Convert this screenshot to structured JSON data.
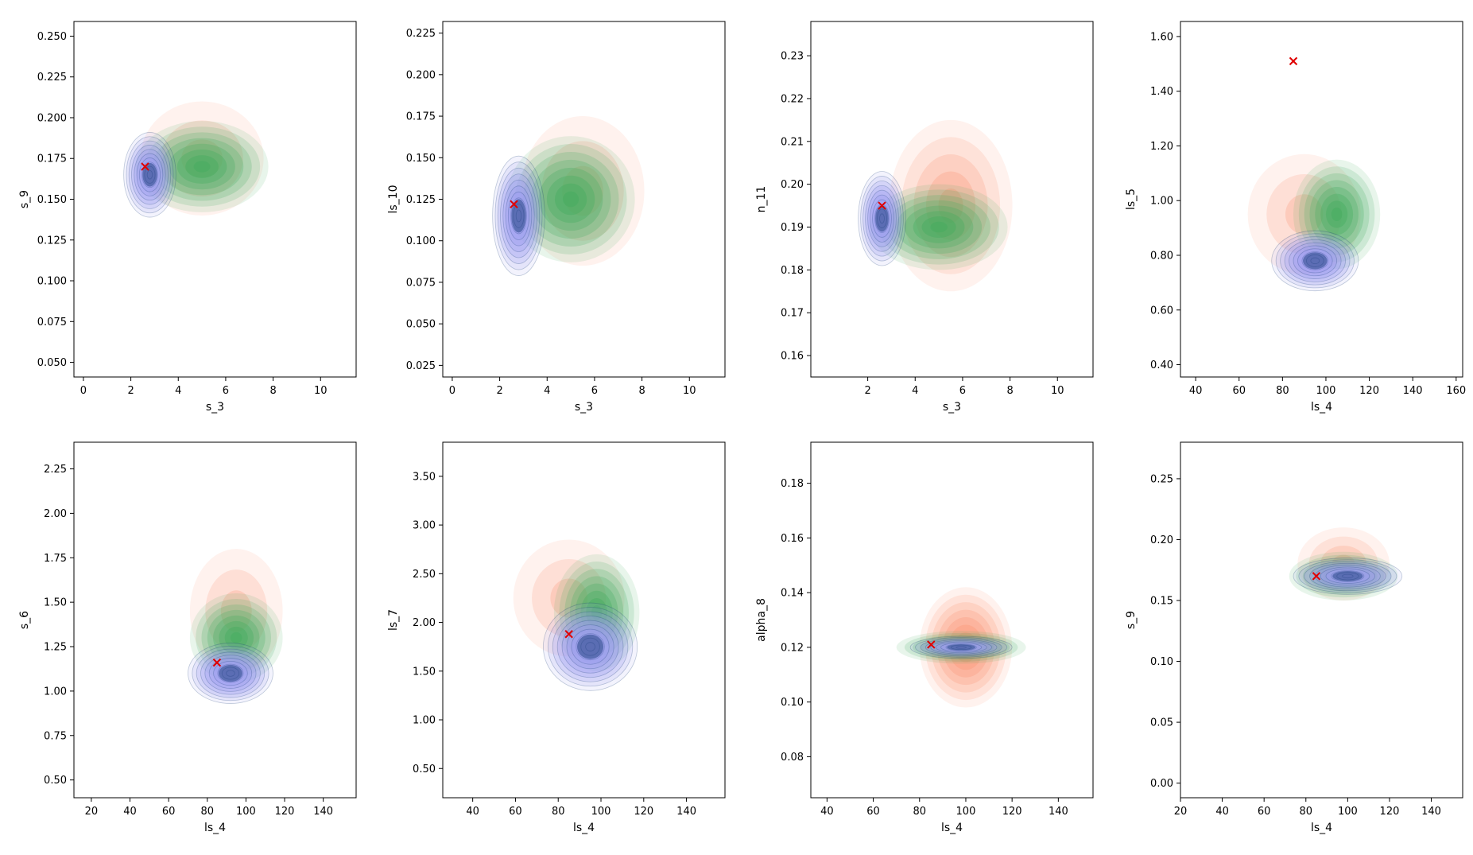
{
  "colors": {
    "series_a": "#fc9272",
    "series_b": "#41ab5d",
    "series_c": "#9e9ef0",
    "series_c_dark": "#08306b",
    "marker": "#e00000"
  },
  "chart_data": [
    {
      "type": "kde-contour",
      "xlabel": "s_3",
      "ylabel": "s_9",
      "xlim": [
        -0.4,
        11.5
      ],
      "ylim": [
        0.041,
        0.259
      ],
      "xticks": [
        0,
        2,
        4,
        6,
        8,
        10
      ],
      "yticks": [
        0.05,
        0.075,
        0.1,
        0.125,
        0.15,
        0.175,
        0.2,
        0.225,
        0.25
      ],
      "marker": {
        "x": 2.6,
        "y": 0.17
      },
      "series": [
        {
          "color": "series_a",
          "center": [
            5.0,
            0.175
          ],
          "spread": [
            2.6,
            0.035
          ],
          "levels": 3,
          "peak_alpha": 0.35
        },
        {
          "color": "series_b",
          "center": [
            5.0,
            0.17
          ],
          "spread": [
            2.8,
            0.028
          ],
          "levels": 8,
          "peak_alpha": 0.6
        },
        {
          "color": "series_c",
          "center": [
            2.8,
            0.165
          ],
          "spread": [
            1.1,
            0.026
          ],
          "levels": 10,
          "peak_alpha": 0.9
        }
      ]
    },
    {
      "type": "kde-contour",
      "xlabel": "s_3",
      "ylabel": "ls_10",
      "xlim": [
        -0.4,
        11.5
      ],
      "ylim": [
        0.018,
        0.232
      ],
      "xticks": [
        0,
        2,
        4,
        6,
        8,
        10
      ],
      "yticks": [
        0.025,
        0.05,
        0.075,
        0.1,
        0.125,
        0.15,
        0.175,
        0.2,
        0.225
      ],
      "marker": {
        "x": 2.6,
        "y": 0.122
      },
      "series": [
        {
          "color": "series_a",
          "center": [
            5.5,
            0.13
          ],
          "spread": [
            2.6,
            0.045
          ],
          "levels": 3,
          "peak_alpha": 0.35
        },
        {
          "color": "series_b",
          "center": [
            5.0,
            0.125
          ],
          "spread": [
            2.7,
            0.038
          ],
          "levels": 8,
          "peak_alpha": 0.6
        },
        {
          "color": "series_c",
          "center": [
            2.8,
            0.115
          ],
          "spread": [
            1.1,
            0.036
          ],
          "levels": 10,
          "peak_alpha": 0.9
        }
      ]
    },
    {
      "type": "kde-contour",
      "xlabel": "s_3",
      "ylabel": "n_11",
      "xlim": [
        -0.4,
        11.5
      ],
      "ylim": [
        0.155,
        0.238
      ],
      "xticks": [
        2,
        4,
        6,
        8,
        10
      ],
      "yticks": [
        0.16,
        0.17,
        0.18,
        0.19,
        0.2,
        0.21,
        0.22,
        0.23
      ],
      "marker": {
        "x": 2.6,
        "y": 0.195
      },
      "series": [
        {
          "color": "series_a",
          "center": [
            5.5,
            0.195
          ],
          "spread": [
            2.6,
            0.02
          ],
          "levels": 5,
          "peak_alpha": 0.45
        },
        {
          "color": "series_b",
          "center": [
            5.0,
            0.19
          ],
          "spread": [
            2.9,
            0.01
          ],
          "levels": 8,
          "peak_alpha": 0.6
        },
        {
          "color": "series_c",
          "center": [
            2.6,
            0.192
          ],
          "spread": [
            1.0,
            0.011
          ],
          "levels": 10,
          "peak_alpha": 0.9
        }
      ]
    },
    {
      "type": "kde-contour",
      "xlabel": "ls_4",
      "ylabel": "ls_5",
      "xlim": [
        33,
        163
      ],
      "ylim": [
        0.355,
        1.655
      ],
      "xticks": [
        40,
        60,
        80,
        100,
        120,
        140,
        160
      ],
      "yticks": [
        0.4,
        0.6,
        0.8,
        1.0,
        1.2,
        1.4,
        1.6
      ],
      "marker": {
        "x": 85,
        "y": 1.51
      },
      "series": [
        {
          "color": "series_a",
          "center": [
            90,
            0.95
          ],
          "spread": [
            26,
            0.22
          ],
          "levels": 3,
          "peak_alpha": 0.35
        },
        {
          "color": "series_b",
          "center": [
            105,
            0.95
          ],
          "spread": [
            20,
            0.2
          ],
          "levels": 8,
          "peak_alpha": 0.6
        },
        {
          "color": "series_c",
          "center": [
            95,
            0.78
          ],
          "spread": [
            20,
            0.11
          ],
          "levels": 10,
          "peak_alpha": 0.9
        }
      ]
    },
    {
      "type": "kde-contour",
      "xlabel": "ls_4",
      "ylabel": "s_6",
      "xlim": [
        11,
        157
      ],
      "ylim": [
        0.4,
        2.4
      ],
      "xticks": [
        20,
        40,
        60,
        80,
        100,
        120,
        140
      ],
      "yticks": [
        0.5,
        0.75,
        1.0,
        1.25,
        1.5,
        1.75,
        2.0,
        2.25
      ],
      "marker": {
        "x": 85,
        "y": 1.16
      },
      "series": [
        {
          "color": "series_a",
          "center": [
            95,
            1.45
          ],
          "spread": [
            24,
            0.35
          ],
          "levels": 3,
          "peak_alpha": 0.35
        },
        {
          "color": "series_b",
          "center": [
            95,
            1.3
          ],
          "spread": [
            24,
            0.25
          ],
          "levels": 8,
          "peak_alpha": 0.6
        },
        {
          "color": "series_c",
          "center": [
            92,
            1.1
          ],
          "spread": [
            22,
            0.17
          ],
          "levels": 10,
          "peak_alpha": 0.9
        }
      ]
    },
    {
      "type": "kde-contour",
      "xlabel": "ls_4",
      "ylabel": "ls_7",
      "xlim": [
        26,
        158
      ],
      "ylim": [
        0.2,
        3.85
      ],
      "xticks": [
        40,
        60,
        80,
        100,
        120,
        140
      ],
      "yticks": [
        0.5,
        1.0,
        1.5,
        2.0,
        2.5,
        3.0,
        3.5
      ],
      "marker": {
        "x": 85,
        "y": 1.88
      },
      "series": [
        {
          "color": "series_a",
          "center": [
            85,
            2.25
          ],
          "spread": [
            26,
            0.6
          ],
          "levels": 3,
          "peak_alpha": 0.35
        },
        {
          "color": "series_b",
          "center": [
            98,
            2.1
          ],
          "spread": [
            20,
            0.6
          ],
          "levels": 8,
          "peak_alpha": 0.6
        },
        {
          "color": "series_c",
          "center": [
            95,
            1.75
          ],
          "spread": [
            22,
            0.45
          ],
          "levels": 10,
          "peak_alpha": 0.9
        }
      ]
    },
    {
      "type": "kde-contour",
      "xlabel": "ls_4",
      "ylabel": "alpha_8",
      "xlim": [
        33,
        155
      ],
      "ylim": [
        0.065,
        0.195
      ],
      "xticks": [
        40,
        60,
        80,
        100,
        120,
        140
      ],
      "yticks": [
        0.08,
        0.1,
        0.12,
        0.14,
        0.16,
        0.18
      ],
      "marker": {
        "x": 85,
        "y": 0.121
      },
      "series": [
        {
          "color": "series_a",
          "center": [
            100,
            0.12
          ],
          "spread": [
            20,
            0.022
          ],
          "levels": 8,
          "peak_alpha": 0.6
        },
        {
          "color": "series_b",
          "center": [
            98,
            0.12
          ],
          "spread": [
            28,
            0.006
          ],
          "levels": 8,
          "peak_alpha": 0.6
        },
        {
          "color": "series_c",
          "center": [
            98,
            0.12
          ],
          "spread": [
            22,
            0.004
          ],
          "levels": 10,
          "peak_alpha": 0.9
        }
      ]
    },
    {
      "type": "kde-contour",
      "xlabel": "ls_4",
      "ylabel": "s_9",
      "xlim": [
        20,
        155
      ],
      "ylim": [
        -0.012,
        0.28
      ],
      "xticks": [
        20,
        40,
        60,
        80,
        100,
        120,
        140
      ],
      "yticks": [
        0.0,
        0.05,
        0.1,
        0.15,
        0.2,
        0.25
      ],
      "marker": {
        "x": 85,
        "y": 0.17
      },
      "series": [
        {
          "color": "series_a",
          "center": [
            98,
            0.18
          ],
          "spread": [
            22,
            0.03
          ],
          "levels": 4,
          "peak_alpha": 0.4
        },
        {
          "color": "series_b",
          "center": [
            98,
            0.17
          ],
          "spread": [
            26,
            0.02
          ],
          "levels": 8,
          "peak_alpha": 0.6
        },
        {
          "color": "series_c",
          "center": [
            100,
            0.17
          ],
          "spread": [
            26,
            0.015
          ],
          "levels": 10,
          "peak_alpha": 0.9
        }
      ]
    }
  ]
}
